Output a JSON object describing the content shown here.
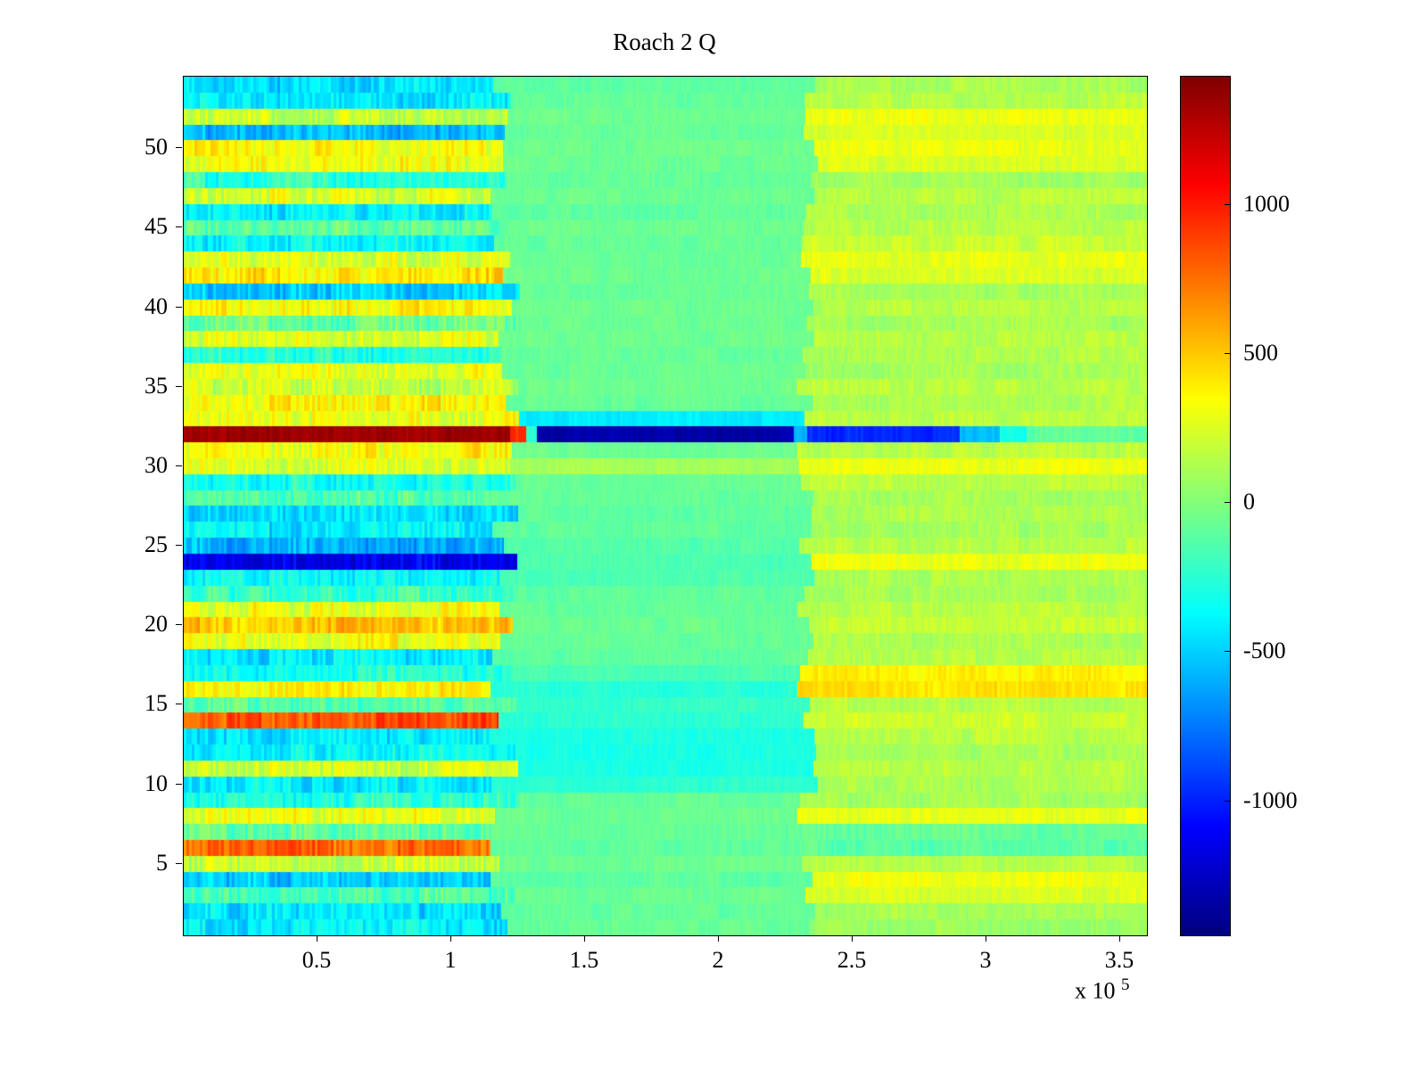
{
  "title": "Roach 2 Q",
  "x_axis": {
    "tick_labels": [
      "0.5",
      "1",
      "1.5",
      "2",
      "2.5",
      "3",
      "3.5"
    ],
    "tick_values": [
      0.5,
      1,
      1.5,
      2,
      2.5,
      3,
      3.5
    ],
    "exponent_prefix": "x 10",
    "exponent": "5"
  },
  "y_axis": {
    "tick_labels": [
      "5",
      "10",
      "15",
      "20",
      "25",
      "30",
      "35",
      "40",
      "45",
      "50"
    ],
    "tick_values": [
      5,
      10,
      15,
      20,
      25,
      30,
      35,
      40,
      45,
      50
    ]
  },
  "colorbar": {
    "tick_labels": [
      "1000",
      "500",
      "0",
      "-500",
      "-1000"
    ],
    "tick_values": [
      1000,
      500,
      0,
      -500,
      -1000
    ]
  },
  "chart_data": {
    "type": "heatmap",
    "title": "Roach 2 Q",
    "colormap": "jet",
    "caxis": [
      -1450,
      1430
    ],
    "x_range": [
      0,
      360000
    ],
    "y_range": [
      0.5,
      54.5
    ],
    "n_rows": 54,
    "x_segment_breaks": [
      120000,
      233000
    ],
    "row_order": "bottom_to_top",
    "rows_note": "per row [value in x<1.2e5, value 1.2e5-2.33e5, value >2.33e5]",
    "rows": [
      [
        -420,
        -80,
        80
      ],
      [
        -450,
        -90,
        100
      ],
      [
        -150,
        -60,
        240
      ],
      [
        -520,
        -100,
        300
      ],
      [
        180,
        -60,
        150
      ],
      [
        760,
        -100,
        -120
      ],
      [
        -100,
        -80,
        -80
      ],
      [
        300,
        -70,
        280
      ],
      [
        -260,
        -80,
        100
      ],
      [
        -420,
        -240,
        120
      ],
      [
        240,
        -300,
        150
      ],
      [
        -360,
        -300,
        100
      ],
      [
        -420,
        -280,
        150
      ],
      [
        820,
        -240,
        200
      ],
      [
        -120,
        -220,
        150
      ],
      [
        350,
        -260,
        420
      ],
      [
        -300,
        -160,
        380
      ],
      [
        -420,
        -100,
        150
      ],
      [
        300,
        -80,
        120
      ],
      [
        520,
        -70,
        200
      ],
      [
        300,
        -80,
        150
      ],
      [
        -200,
        -100,
        100
      ],
      [
        -360,
        -150,
        120
      ],
      [
        -1150,
        -150,
        300
      ],
      [
        -600,
        -130,
        150
      ],
      [
        -400,
        -100,
        100
      ],
      [
        -460,
        -100,
        120
      ],
      [
        -150,
        -90,
        100
      ],
      [
        -300,
        -80,
        150
      ],
      [
        250,
        100,
        300
      ],
      [
        350,
        -60,
        150
      ],
      [
        1350,
        -1320,
        -900
      ],
      [
        300,
        -420,
        150
      ],
      [
        360,
        -80,
        120
      ],
      [
        200,
        -60,
        150
      ],
      [
        300,
        -70,
        100
      ],
      [
        -260,
        -80,
        120
      ],
      [
        250,
        -60,
        150
      ],
      [
        -100,
        -70,
        100
      ],
      [
        360,
        -60,
        150
      ],
      [
        -500,
        -80,
        100
      ],
      [
        400,
        -60,
        250
      ],
      [
        250,
        -70,
        280
      ],
      [
        -360,
        -80,
        200
      ],
      [
        -100,
        -60,
        150
      ],
      [
        -400,
        -100,
        120
      ],
      [
        250,
        -60,
        150
      ],
      [
        -250,
        -80,
        100
      ],
      [
        300,
        -60,
        250
      ],
      [
        360,
        -60,
        300
      ],
      [
        -560,
        -80,
        250
      ],
      [
        200,
        -60,
        300
      ],
      [
        -400,
        -80,
        150
      ],
      [
        -460,
        -100,
        100
      ]
    ],
    "row32": {
      "row": 32,
      "x_profile": [
        [
          0,
          122000,
          1350
        ],
        [
          122000,
          128000,
          950
        ],
        [
          128000,
          132000,
          -250
        ],
        [
          132000,
          228000,
          -1330
        ],
        [
          228000,
          233000,
          -600
        ],
        [
          233000,
          290000,
          -980
        ],
        [
          290000,
          305000,
          -560
        ],
        [
          305000,
          315000,
          -300
        ],
        [
          315000,
          360000,
          -90
        ]
      ]
    }
  }
}
